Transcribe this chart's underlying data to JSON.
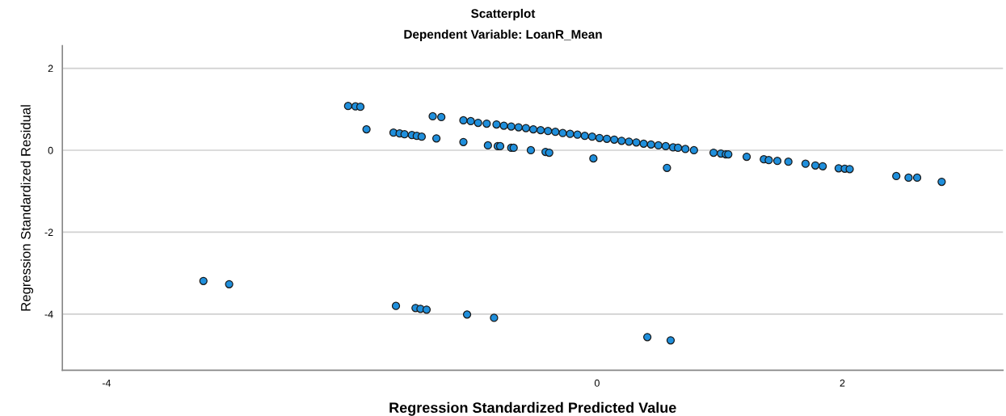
{
  "chart_data": {
    "type": "scatter",
    "title": "Scatterplot",
    "subtitle": "Dependent Variable: LoanR_Mean",
    "xlabel": "Regression Standardized Predicted Value",
    "ylabel": "Regression Standardized Residual",
    "xlim": [
      -4.36,
      3.31
    ],
    "ylim": [
      -5.37,
      2.55
    ],
    "xticks": [
      -4,
      0,
      2
    ],
    "yticks": [
      -4,
      -2,
      0,
      2
    ],
    "grid": "y",
    "marker": "circle",
    "series": [
      {
        "color": "#1f8fdc",
        "x": [
          -2.03,
          -1.97,
          -1.93,
          -1.88,
          -1.66,
          -1.61,
          -1.57,
          -1.51,
          -1.47,
          -1.43,
          -1.34,
          -1.27,
          -1.31,
          -1.09,
          -1.09,
          -1.03,
          -0.97,
          -0.9,
          -0.89,
          -0.81,
          -0.79,
          -0.7,
          -0.68,
          -0.54,
          -0.42,
          -0.39,
          -0.03,
          -0.82,
          -0.76,
          -0.7,
          -0.64,
          -0.58,
          -0.52,
          -0.46,
          -0.4,
          -0.34,
          -0.28,
          -0.22,
          -0.16,
          -0.1,
          -0.04,
          0.02,
          0.08,
          0.14,
          0.2,
          0.26,
          0.32,
          0.38,
          0.44,
          0.5,
          0.56,
          0.62,
          0.66,
          0.72,
          0.79,
          0.95,
          1.01,
          1.05,
          1.07,
          1.22,
          1.36,
          1.4,
          1.47,
          1.56,
          1.7,
          1.78,
          1.84,
          1.97,
          2.02,
          2.06,
          2.44,
          2.54,
          2.61,
          2.81,
          0.57,
          -3.21,
          -3.0,
          -1.64,
          -1.48,
          -1.44,
          -1.39,
          -1.06,
          -0.84,
          0.41,
          0.6
        ],
        "values": [
          1.08,
          1.07,
          1.06,
          0.51,
          0.43,
          0.41,
          0.39,
          0.37,
          0.35,
          0.33,
          0.83,
          0.81,
          0.29,
          0.2,
          0.73,
          0.71,
          0.67,
          0.65,
          0.12,
          0.1,
          0.1,
          0.06,
          0.06,
          0.0,
          -0.04,
          -0.06,
          -0.2,
          0.63,
          0.6,
          0.58,
          0.56,
          0.54,
          0.51,
          0.49,
          0.47,
          0.45,
          0.42,
          0.4,
          0.38,
          0.35,
          0.33,
          0.3,
          0.28,
          0.26,
          0.23,
          0.21,
          0.19,
          0.16,
          0.14,
          0.12,
          0.1,
          0.07,
          0.06,
          0.03,
          0.0,
          -0.06,
          -0.08,
          -0.1,
          -0.1,
          -0.16,
          -0.22,
          -0.24,
          -0.26,
          -0.28,
          -0.33,
          -0.37,
          -0.39,
          -0.44,
          -0.45,
          -0.46,
          -0.63,
          -0.67,
          -0.67,
          -0.77,
          -0.43,
          -3.19,
          -3.27,
          -3.8,
          -3.85,
          -3.87,
          -3.89,
          -4.01,
          -4.09,
          -4.56,
          -4.64
        ]
      }
    ]
  }
}
